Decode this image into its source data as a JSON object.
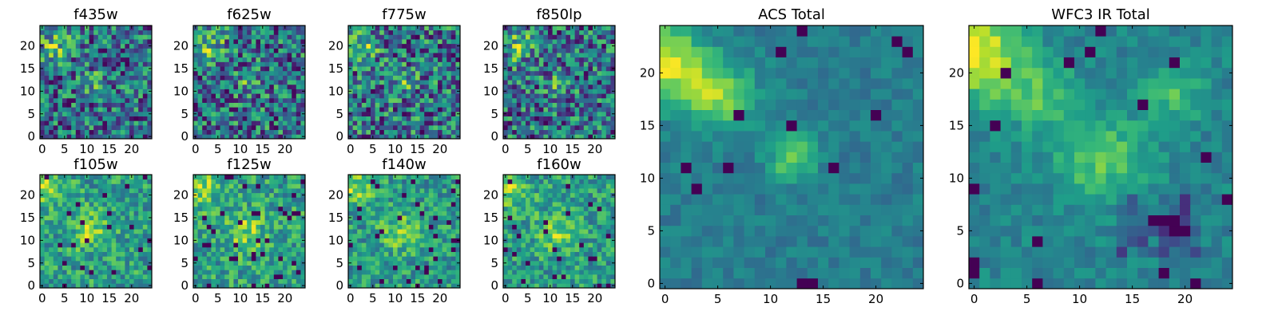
{
  "chart_data": [
    {
      "type": "heatmap",
      "title": "f435w",
      "grid_size": 25,
      "xticks": [
        0,
        5,
        10,
        15,
        20
      ],
      "yticks": [
        0,
        5,
        10,
        15,
        20
      ],
      "colormap": "viridis",
      "seed": 11,
      "pattern": "noise"
    },
    {
      "type": "heatmap",
      "title": "f625w",
      "grid_size": 25,
      "xticks": [
        0,
        5,
        10,
        15,
        20
      ],
      "yticks": [
        0,
        5,
        10,
        15,
        20
      ],
      "colormap": "viridis",
      "seed": 23,
      "pattern": "noise"
    },
    {
      "type": "heatmap",
      "title": "f775w",
      "grid_size": 25,
      "xticks": [
        0,
        5,
        10,
        15,
        20
      ],
      "yticks": [
        0,
        5,
        10,
        15,
        20
      ],
      "colormap": "viridis",
      "seed": 37,
      "pattern": "noise"
    },
    {
      "type": "heatmap",
      "title": "f850lp",
      "grid_size": 25,
      "xticks": [
        0,
        5,
        10,
        15,
        20
      ],
      "yticks": [
        0,
        5,
        10,
        15,
        20
      ],
      "colormap": "viridis",
      "seed": 41,
      "pattern": "noise"
    },
    {
      "type": "heatmap",
      "title": "f105w",
      "grid_size": 25,
      "xticks": [
        0,
        5,
        10,
        15,
        20
      ],
      "yticks": [
        0,
        5,
        10,
        15,
        20
      ],
      "colormap": "viridis",
      "seed": 53,
      "pattern": "smooth"
    },
    {
      "type": "heatmap",
      "title": "f125w",
      "grid_size": 25,
      "xticks": [
        0,
        5,
        10,
        15,
        20
      ],
      "yticks": [
        0,
        5,
        10,
        15,
        20
      ],
      "colormap": "viridis",
      "seed": 67,
      "pattern": "smooth"
    },
    {
      "type": "heatmap",
      "title": "f140w",
      "grid_size": 25,
      "xticks": [
        0,
        5,
        10,
        15,
        20
      ],
      "yticks": [
        0,
        5,
        10,
        15,
        20
      ],
      "colormap": "viridis",
      "seed": 71,
      "pattern": "smooth"
    },
    {
      "type": "heatmap",
      "title": "f160w",
      "grid_size": 25,
      "xticks": [
        0,
        5,
        10,
        15,
        20
      ],
      "yticks": [
        0,
        5,
        10,
        15,
        20
      ],
      "colormap": "viridis",
      "seed": 83,
      "pattern": "smooth"
    },
    {
      "type": "heatmap",
      "title": "ACS Total",
      "grid_size": 25,
      "xticks": [
        0,
        5,
        10,
        15,
        20
      ],
      "yticks": [
        0,
        5,
        10,
        15,
        20
      ],
      "colormap": "viridis",
      "seed": 97,
      "pattern": "acs"
    },
    {
      "type": "heatmap",
      "title": "WFC3 IR Total",
      "grid_size": 25,
      "xticks": [
        0,
        5,
        10,
        15,
        20
      ],
      "yticks": [
        0,
        5,
        10,
        15,
        20
      ],
      "colormap": "viridis",
      "seed": 101,
      "pattern": "wfc3"
    }
  ]
}
